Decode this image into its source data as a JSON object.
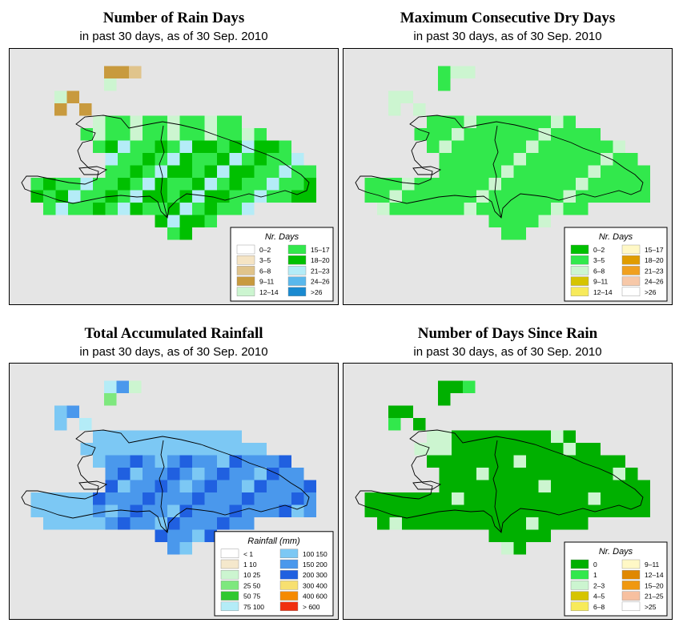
{
  "panels": [
    {
      "title": "Number of Rain Days",
      "subtitle": "in past 30 days, as of  30 Sep. 2010",
      "legend": {
        "title": "Nr. Days",
        "items": [
          {
            "label": "0–2",
            "color": "#ffffff"
          },
          {
            "label": "3–5",
            "color": "#f5e4c4"
          },
          {
            "label": "6–8",
            "color": "#e0c48c"
          },
          {
            "label": "9–11",
            "color": "#c89a3e"
          },
          {
            "label": "12–14",
            "color": "#ccf5d0"
          },
          {
            "label": "15–17",
            "color": "#32e84c"
          },
          {
            "label": "18–20",
            "color": "#00c000"
          },
          {
            "label": "21–23",
            "color": "#b4ecf7"
          },
          {
            "label": "24–26",
            "color": "#5ab8ec"
          },
          {
            "label": ">26",
            "color": "#1a8ad0"
          }
        ]
      }
    },
    {
      "title": "Maximum Consecutive Dry Days",
      "subtitle": "in past 30 days, as of  30 Sep. 2010",
      "legend": {
        "title": "Nr. Days",
        "items": [
          {
            "label": "0–2",
            "color": "#00c000"
          },
          {
            "label": "3–5",
            "color": "#32e84c"
          },
          {
            "label": "6–8",
            "color": "#ccf5d0"
          },
          {
            "label": "9–11",
            "color": "#d6c400"
          },
          {
            "label": "12–14",
            "color": "#f7ea5a"
          },
          {
            "label": "15–17",
            "color": "#fff8c6"
          },
          {
            "label": "18–20",
            "color": "#e09c00"
          },
          {
            "label": "21–23",
            "color": "#f0a020"
          },
          {
            "label": "24–26",
            "color": "#f7c8a8"
          },
          {
            "label": ">26",
            "color": "#ffffff"
          }
        ]
      }
    },
    {
      "title": "Total Accumulated Rainfall",
      "subtitle": "in past 30 days, as of  30 Sep. 2010",
      "legend": {
        "title": "Rainfall (mm)",
        "items": [
          {
            "label": "< 1",
            "color": "#ffffff"
          },
          {
            "label": "1    10",
            "color": "#f5e8cc"
          },
          {
            "label": "10   25",
            "color": "#ccf5d0"
          },
          {
            "label": "25   50",
            "color": "#7ee87e"
          },
          {
            "label": "50   75",
            "color": "#30c830"
          },
          {
            "label": "75  100",
            "color": "#b4ecf7"
          },
          {
            "label": "100  150",
            "color": "#7cc8f4"
          },
          {
            "label": "150  200",
            "color": "#4a98ec"
          },
          {
            "label": "200  300",
            "color": "#2060e0"
          },
          {
            "label": "300  400",
            "color": "#f7e070"
          },
          {
            "label": "400  600",
            "color": "#f58a00"
          },
          {
            "label": "> 600",
            "color": "#f03010"
          }
        ]
      }
    },
    {
      "title": "Number of Days Since Rain",
      "subtitle": "in past 30 days, as of  30 Sep. 2010",
      "legend": {
        "title": "Nr. Days",
        "items": [
          {
            "label": "0",
            "color": "#00b000"
          },
          {
            "label": "1",
            "color": "#32e84c"
          },
          {
            "label": "2–3",
            "color": "#ccf5d0"
          },
          {
            "label": "4–5",
            "color": "#d6c400"
          },
          {
            "label": "6–8",
            "color": "#f7ea5a"
          },
          {
            "label": "9–11",
            "color": "#fff8c6"
          },
          {
            "label": "12–14",
            "color": "#e08800"
          },
          {
            "label": "15–20",
            "color": "#f09810"
          },
          {
            "label": "21–25",
            "color": "#f7c0a0"
          },
          {
            "label": ">25",
            "color": "#ffffff"
          }
        ]
      }
    }
  ],
  "map_background": "#e5e5e5",
  "coast_color": "#000000"
}
